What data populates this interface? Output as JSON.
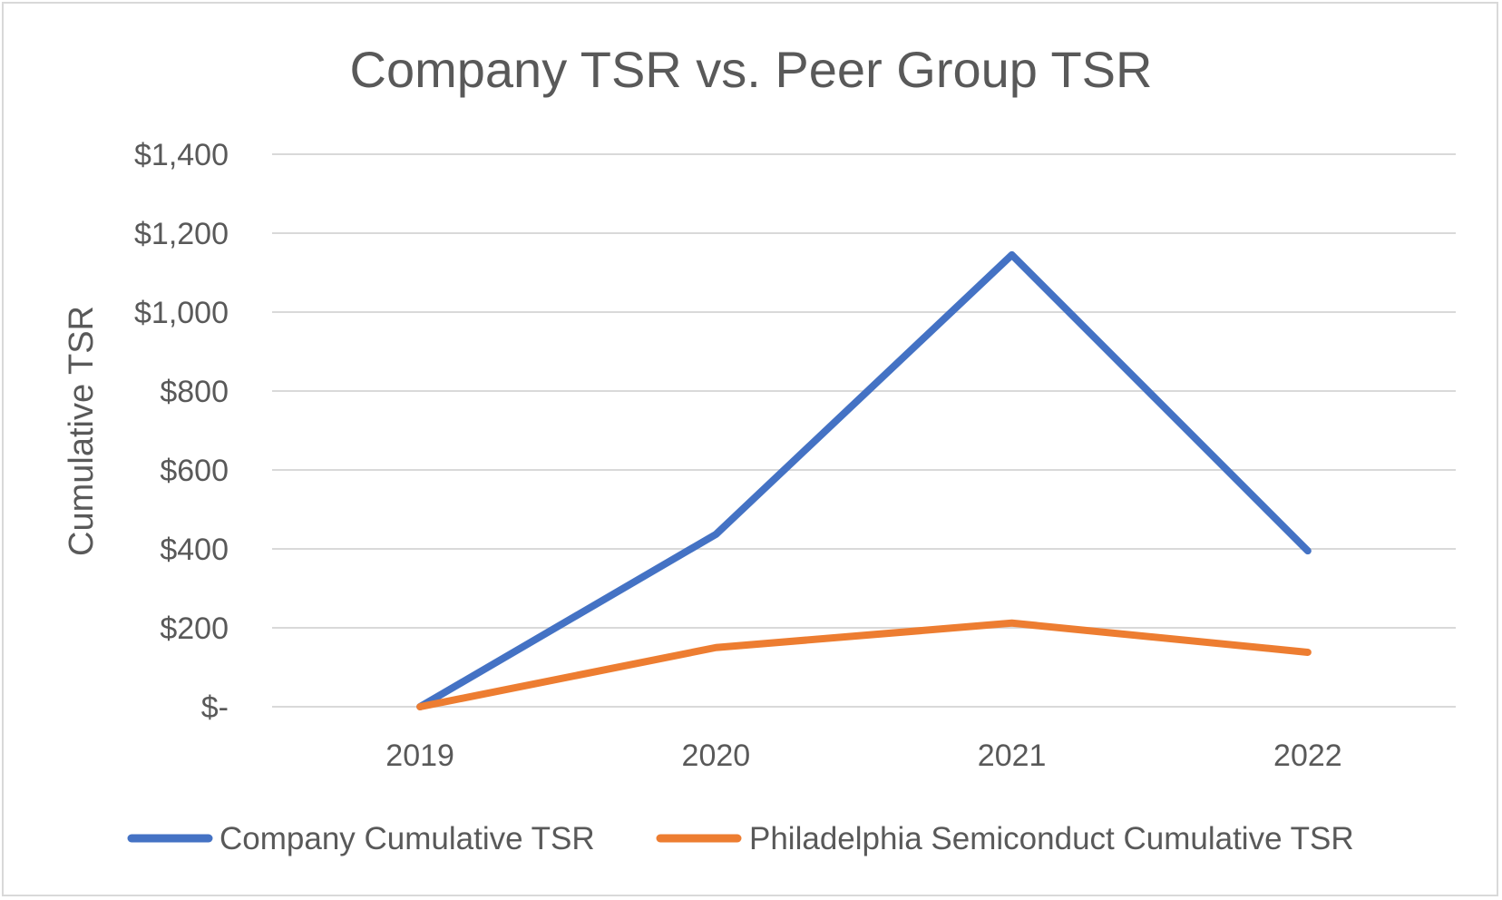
{
  "chart_data": {
    "type": "line",
    "title": "Company TSR vs. Peer Group TSR",
    "xlabel": "",
    "ylabel": "Cumulative TSR",
    "categories": [
      "2019",
      "2020",
      "2021",
      "2022"
    ],
    "y_ticks": [
      {
        "value": 0,
        "label": "$-"
      },
      {
        "value": 200,
        "label": "$200"
      },
      {
        "value": 400,
        "label": "$400"
      },
      {
        "value": 600,
        "label": "$600"
      },
      {
        "value": 800,
        "label": "$800"
      },
      {
        "value": 1000,
        "label": "$1,000"
      },
      {
        "value": 1200,
        "label": "$1,200"
      },
      {
        "value": 1400,
        "label": "$1,400"
      }
    ],
    "ylim": [
      0,
      1400
    ],
    "grid": true,
    "legend_position": "bottom",
    "series": [
      {
        "name": "Company Cumulative TSR",
        "color": "#4472c4",
        "values": [
          0,
          437,
          1145,
          395
        ]
      },
      {
        "name": "Philadelphia Semiconduct Cumulative TSR",
        "color": "#ed7d31",
        "values": [
          0,
          150,
          212,
          138
        ]
      }
    ]
  }
}
